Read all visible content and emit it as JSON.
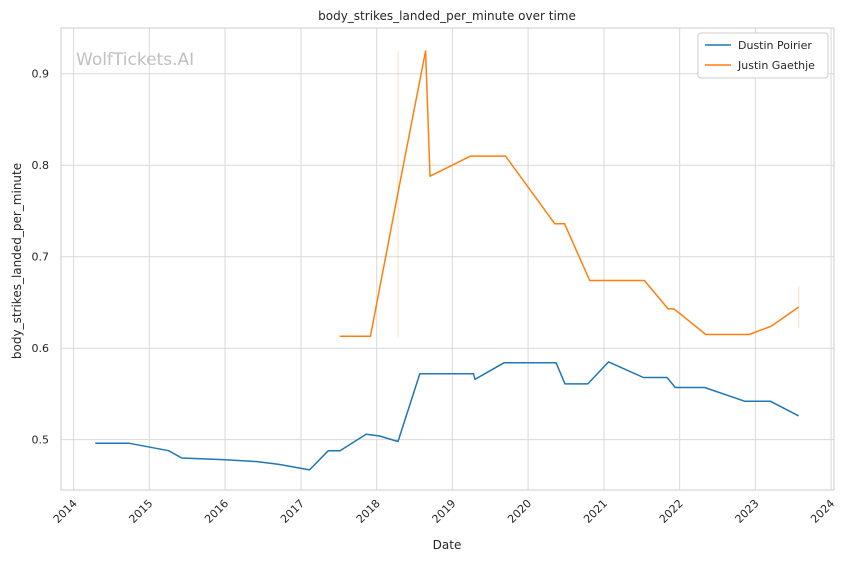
{
  "chart_data": {
    "type": "line",
    "title": "body_strikes_landed_per_minute over time",
    "xlabel": "Date",
    "ylabel": "body_strikes_landed_per_minute",
    "watermark": "WolfTickets.AI",
    "xlim": [
      "2013-11-01",
      "2024-01-15"
    ],
    "ylim": [
      0.445,
      0.95
    ],
    "x_ticks": [
      "2014",
      "2015",
      "2016",
      "2017",
      "2018",
      "2019",
      "2020",
      "2021",
      "2022",
      "2023",
      "2024"
    ],
    "y_ticks": [
      0.5,
      0.6,
      0.7,
      0.8,
      0.9
    ],
    "grid": true,
    "legend_position": "top-right",
    "series": [
      {
        "name": "Dustin Poirier",
        "color": "#1f77b4",
        "points": [
          [
            "2014-04-15",
            0.496
          ],
          [
            "2014-09-27",
            0.496
          ],
          [
            "2015-04-04",
            0.488
          ],
          [
            "2015-06-06",
            0.48
          ],
          [
            "2016-01-02",
            0.478
          ],
          [
            "2016-06-04",
            0.476
          ],
          [
            "2016-09-17",
            0.473
          ],
          [
            "2017-02-11",
            0.467
          ],
          [
            "2017-05-13",
            0.488
          ],
          [
            "2017-07-08",
            0.488
          ],
          [
            "2017-11-11",
            0.506
          ],
          [
            "2018-01-15",
            0.504
          ],
          [
            "2018-04-14",
            0.498
          ],
          [
            "2018-07-28",
            0.572
          ],
          [
            "2019-03-01",
            0.572
          ],
          [
            "2019-04-13",
            0.572
          ],
          [
            "2019-04-20",
            0.566
          ],
          [
            "2019-09-07",
            0.584
          ],
          [
            "2020-04-01",
            0.584
          ],
          [
            "2020-05-15",
            0.584
          ],
          [
            "2020-06-27",
            0.561
          ],
          [
            "2020-10-15",
            0.561
          ],
          [
            "2021-01-23",
            0.585
          ],
          [
            "2021-07-10",
            0.568
          ],
          [
            "2021-11-01",
            0.568
          ],
          [
            "2021-12-11",
            0.557
          ],
          [
            "2022-05-01",
            0.557
          ],
          [
            "2022-11-12",
            0.542
          ],
          [
            "2023-03-15",
            0.542
          ],
          [
            "2023-07-29",
            0.526
          ]
        ]
      },
      {
        "name": "Justin Gaethje",
        "color": "#ff7f0e",
        "points": [
          [
            "2017-07-07",
            0.613
          ],
          [
            "2017-12-02",
            0.613
          ],
          [
            "2018-04-14",
            0.77
          ],
          [
            "2018-08-25",
            0.925
          ],
          [
            "2018-09-15",
            0.788
          ],
          [
            "2019-03-30",
            0.81
          ],
          [
            "2019-09-14",
            0.81
          ],
          [
            "2020-05-09",
            0.736
          ],
          [
            "2020-06-25",
            0.736
          ],
          [
            "2020-10-24",
            0.674
          ],
          [
            "2021-07-15",
            0.674
          ],
          [
            "2021-11-06",
            0.643
          ],
          [
            "2021-12-05",
            0.643
          ],
          [
            "2022-05-07",
            0.615
          ],
          [
            "2022-12-01",
            0.615
          ],
          [
            "2023-03-18",
            0.624
          ],
          [
            "2023-07-29",
            0.645
          ]
        ],
        "error_bars": [
          {
            "x": "2018-04-14",
            "low": 0.612,
            "high": 0.925
          },
          {
            "x": "2023-07-29",
            "low": 0.622,
            "high": 0.668
          }
        ]
      }
    ]
  }
}
